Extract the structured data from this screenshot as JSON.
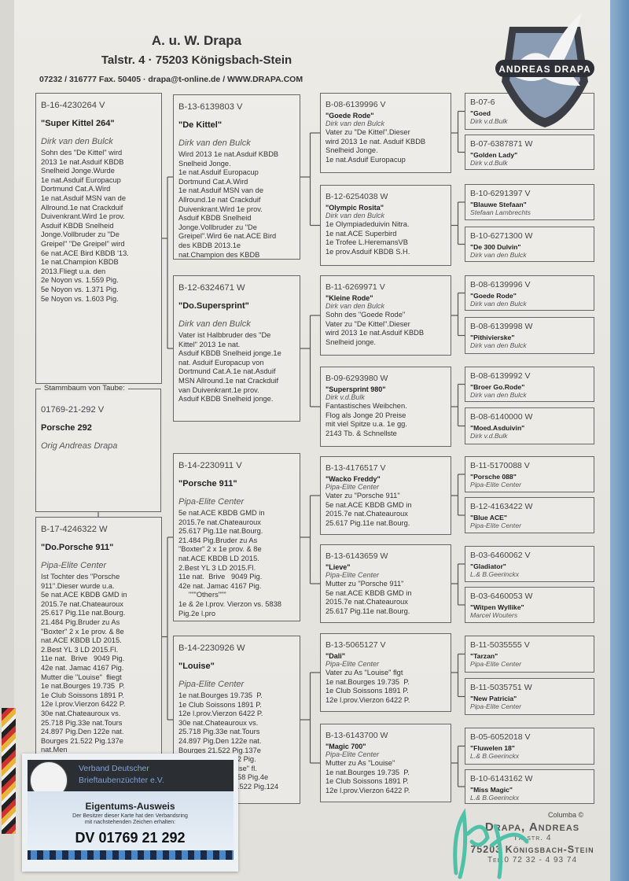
{
  "header": {
    "name": "A. u. W. Drapa",
    "address": "Talstr. 4  ·  75203 Königsbach-Stein",
    "contact": "07232 / 316777 Fax. 50405  ·  drapa@t-online.de / WWW.DRAPA.COM"
  },
  "logo": {
    "text": "ANDREAS DRAPA",
    "icon": "dove-icon"
  },
  "subject": {
    "label": "Stammbaum von Taube:",
    "ring": "01769-21-292 V",
    "name": "Porsche  292",
    "breeder": "Orig Andreas Drapa"
  },
  "pedigree": {
    "parents": [
      {
        "ring": "B-16-4230264 V",
        "name": "\"Super Kittel  264\"",
        "breeder": "Dirk van den Bulck",
        "notes": [
          "Sohn des \"De Kittel\" wird",
          "2013 1e nat.Asduif KBDB",
          "Snelheid Jonge.Wurde",
          "1e nat.Asduif Europacup",
          "Dortmund Cat.A.Wird",
          "1e nat.Asduif MSN van de",
          "Allround.1e nat Crackduif",
          "Duivenkrant.Wird 1e prov.",
          "Asduif KBDB Snelheid",
          "Jonge.Vollbruder zu \"De",
          "Greipel\" \"De Greipel\" wird",
          "6e nat.ACE Bird KBDB '13.",
          "1e nat.Champion KBDB",
          "2013.Fliegt u.a. den",
          "2e Noyon vs. 1.559 Pig.",
          "5e Noyon vs. 1.371 Pig.",
          "5e Noyon vs. 1.603 Pig."
        ]
      },
      {
        "ring": "B-17-4246322 W",
        "name": "\"Do.Porsche 911\"",
        "breeder": "Pipa-Elite Center",
        "notes": [
          "Ist Tochter des \"Porsche",
          "911\".Dieser wurde u.a.",
          "5e nat.ACE KBDB GMD in",
          "2015.7e nat.Chateauroux",
          "25.617 Pig.11e nat.Bourg.",
          "21.484 Pig.Bruder zu As",
          "\"Boxter\" 2 x 1e prov. & 8e",
          "nat.ACE KBDB LD 2015.",
          "2.Best YL 3 LD 2015.Fl.",
          "11e nat.  Brive   9049 Pig.",
          "42e nat. Jamac 4167 Pig.",
          "Mutter die \"Louise\"  fliegt",
          "1e nat.Bourges 19.735  P.",
          "1e Club Soissons 1891 P.",
          "12e l.prov.Vierzon 6422 P.",
          "30e nat.Chateauroux vs.",
          "25.718 Pig.33e nat.Tours",
          "24.897 Pig.Den 122e nat.",
          "Bourges 21.522 Pig.137e",
          "nat.Men"
        ]
      }
    ],
    "grandparents": [
      {
        "ring": "B-13-6139803 V",
        "name": "\"De Kittel\"",
        "breeder": "Dirk van den Bulck",
        "notes": [
          "Wird 2013 1e nat.Asduif KBDB",
          "Snelheid Jonge.",
          "1e nat.Asduif Europacup",
          "Dortmund Cat.A.Wird",
          "1e nat.Asduif MSN van de",
          "Allround.1e nat Crackduif",
          "Duivenkrant.Wird 1e prov.",
          "Asduif KBDB Snelheid",
          "Jonge.Vollbruder zu \"De",
          "Greipel\".Wird 6e nat.ACE Bird",
          "des KBDB 2013.1e",
          "nat.Champion des KBDB"
        ]
      },
      {
        "ring": "B-12-6324671 W",
        "name": "\"Do.Supersprint\"",
        "breeder": "Dirk van den Bulck",
        "notes": [
          "Vater ist Halbbruder des \"De",
          "Kittel\" 2013 1e nat.",
          "Asduif KBDB Snelheid jonge.1e",
          "nat. Asduif Europacup von",
          "Dortmund Cat.A.1e nat.Asduif",
          "MSN Allround.1e nat Crackduif",
          "van Duivenkrant.1e prov.",
          "Asduif KBDB Snelheid jonge."
        ]
      },
      {
        "ring": "B-14-2230911 V",
        "name": "\"Porsche 911\"",
        "breeder": "Pipa-Elite Center",
        "notes": [
          "5e nat.ACE KBDB GMD in",
          "2015.7e nat.Chateauroux",
          "25.617 Pig.11e nat.Bourg.",
          "21.484 Pig.Bruder zu As",
          "\"Boxter\" 2 x 1e prov. & 8e",
          "nat.ACE KBDB LD 2015.",
          "2.Best YL 3 LD 2015.Fl.",
          "11e nat.  Brive   9049 Pig.",
          "42e nat. Jamac 4167 Pig.",
          "     \"\"\"Others\"\"\"",
          "1e & 2e l.prov. Vierzon vs. 5838",
          "Pig.2e l.pro"
        ]
      },
      {
        "ring": "B-14-2230926 W",
        "name": "\"Louise\"",
        "breeder": "Pipa-Elite Center",
        "notes": [
          "1e nat.Bourges 19.735  P.",
          "1e Club Soissons 1891 P.",
          "12e l.prov.Vierzon 6422 P.",
          "30e nat.Chateauroux vs.",
          "25.718 Pig.33e nat.Tours",
          "24.897 Pig.Den 122e nat.",
          "Bourges 21.522 Pig.137e",
          "                         982 Pig.",
          "                         ouise\" fl.",
          "                         1858 Pig.4e",
          "                         21.522 Pig.124"
        ]
      }
    ],
    "great_grandparents": [
      {
        "ring": "B-08-6139996 V",
        "name": "\"Goede Rode\"",
        "breeder": "Dirk van den Bulck",
        "notes": [
          "Vater zu \"De Kittel\".Dieser",
          "wird 2013 1e nat. Asduif KBDB",
          "Snelheid Jonge.",
          "1e nat.Asduif Europacup"
        ]
      },
      {
        "ring": "B-12-6254038 W",
        "name": "\"Olympic Rosita\"",
        "breeder": "Dirk van den Bulck",
        "notes": [
          "1e Olympiadeduivin Nitra.",
          "1e nat.ACE Superbird",
          "1e Trofee L.HeremansVB",
          "1e prov.Asduif KBDB S.H."
        ]
      },
      {
        "ring": "B-11-6269971 V",
        "name": "\"Kleine Rode\"",
        "breeder": "Dirk van den Bulck",
        "notes": [
          "Sohn des \"Goede Rode\"",
          "Vater zu \"De Kittel\".Dieser",
          "wird 2013 1e nat.Asduif KBDB",
          "Snelheid jonge."
        ]
      },
      {
        "ring": "B-09-6293980 W",
        "name": "\"Supersprint 980\"",
        "breeder": "Dirk v.d.Bulk",
        "notes": [
          "Fantastisches Weibchen.",
          "Flog als Jonge 20 Preise",
          "mit viel Spitze u.a. 1e gg.",
          "2143 Tb. & Schnellste"
        ]
      },
      {
        "ring": "B-13-4176517 V",
        "name": "\"Wacko Freddy\"",
        "breeder": "Pipa-Elite Center",
        "notes": [
          "Vater zu \"Porsche 911\"",
          "5e nat.ACE KBDB GMD in",
          "2015.7e nat.Chateauroux",
          "25.617 Pig.11e nat.Bourg."
        ]
      },
      {
        "ring": "B-13-6143659 W",
        "name": "\"Lieve\"",
        "breeder": "Pipa-Elite Center",
        "notes": [
          "Mutter zu \"Porsche 911\"",
          "5e nat.ACE KBDB GMD in",
          "2015.7e nat.Chateauroux",
          "25.617 Pig.11e nat.Bourg."
        ]
      },
      {
        "ring": "B-13-5065127 V",
        "name": "\"Dali\"",
        "breeder": "Pipa-Elite Center",
        "notes": [
          "Vater zu As \"Louise\" flgt",
          "1e nat.Bourges 19.735  P.",
          "1e Club Soissons 1891 P.",
          "12e l.prov.Vierzon 6422 P."
        ]
      },
      {
        "ring": "B-13-6143700 W",
        "name": "\"Magic 700\"",
        "breeder": "Pipa-Elite Center",
        "notes": [
          "Mutter zu As \"Louise\"",
          "1e nat.Bourges 19.735  P.",
          "1e Club Soissons 1891 P.",
          "12e l.prov.Vierzon 6422 P."
        ]
      }
    ],
    "great_great_grandparents": [
      {
        "ring": "B-07-6",
        "name": "\"Goed",
        "breeder": "Dirk v.d.Bulk"
      },
      {
        "ring": "B-07-6387871 W",
        "name": "\"Golden Lady\"",
        "breeder": "Dirk v.d.Bulk"
      },
      {
        "ring": "B-10-6291397 V",
        "name": "\"Blauwe Stefaan\"",
        "breeder": "Stefaan Lambrechts"
      },
      {
        "ring": "B-10-6271300 W",
        "name": "\"De 300 Dulvin\"",
        "breeder": "Dirk van den Bulck"
      },
      {
        "ring": "B-08-6139996 V",
        "name": "\"Goede Rode\"",
        "breeder": "Dirk van den Bulck"
      },
      {
        "ring": "B-08-6139998 W",
        "name": "\"Pithivierske\"",
        "breeder": "Dirk van den Bulck"
      },
      {
        "ring": "B-08-6139992 V",
        "name": "\"Broer Go.Rode\"",
        "breeder": "Dirk van den Bulck"
      },
      {
        "ring": "B-08-6140000 W",
        "name": "\"Moed.Asduivin\"",
        "breeder": "Dirk v.d.Bulk"
      },
      {
        "ring": "B-11-5170088 V",
        "name": "\"Porsche 088\"",
        "breeder": "Pipa-Elite Center"
      },
      {
        "ring": "B-12-4163422 W",
        "name": "\"Blue ACE\"",
        "breeder": "Pipa-Elite Center"
      },
      {
        "ring": "B-03-6460062 V",
        "name": "\"Gladiator\"",
        "breeder": "L.& B.Geerinckx"
      },
      {
        "ring": "B-03-6460053 W",
        "name": "\"Witpen Wyllike\"",
        "breeder": "Marcel Wouters"
      },
      {
        "ring": "B-11-5035555 V",
        "name": "\"Tarzan\"",
        "breeder": "Pipa-Elite Center"
      },
      {
        "ring": "B-11-5035751 W",
        "name": "\"New Patricia\"",
        "breeder": "Pipa-Elite Center"
      },
      {
        "ring": "B-05-6052018 V",
        "name": "\"Fluwelen 18\"",
        "breeder": "L.& B.Geerinckx"
      },
      {
        "ring": "B-10-6143162 W",
        "name": "\"Miss Magic\"",
        "breeder": "L.& B.Geerinckx"
      }
    ]
  },
  "card": {
    "org_line1": "Verband Deutscher",
    "org_line2": "Brieftaubenzüchter e.V.",
    "title": "Eigentums-Ausweis",
    "text_line1": "Der Besitzer dieser Karte hat den Verbandsring",
    "text_line2": "mit nachstehenden Zeichen erhalten:",
    "number": "DV 01769 21 292"
  },
  "footer": {
    "copyright": "Columba ©",
    "stamp_name": "Drapa, Andreas",
    "stamp_street": "Talstr. 4",
    "stamp_city": "75203 Königsbach-Stein",
    "stamp_tel": "Tel.0 72 32 - 4 93 74"
  },
  "colors": {
    "paper": "#e7e5df",
    "border": "#666666",
    "signature": "#4fc1a8",
    "card_header": "#2b2e33"
  }
}
